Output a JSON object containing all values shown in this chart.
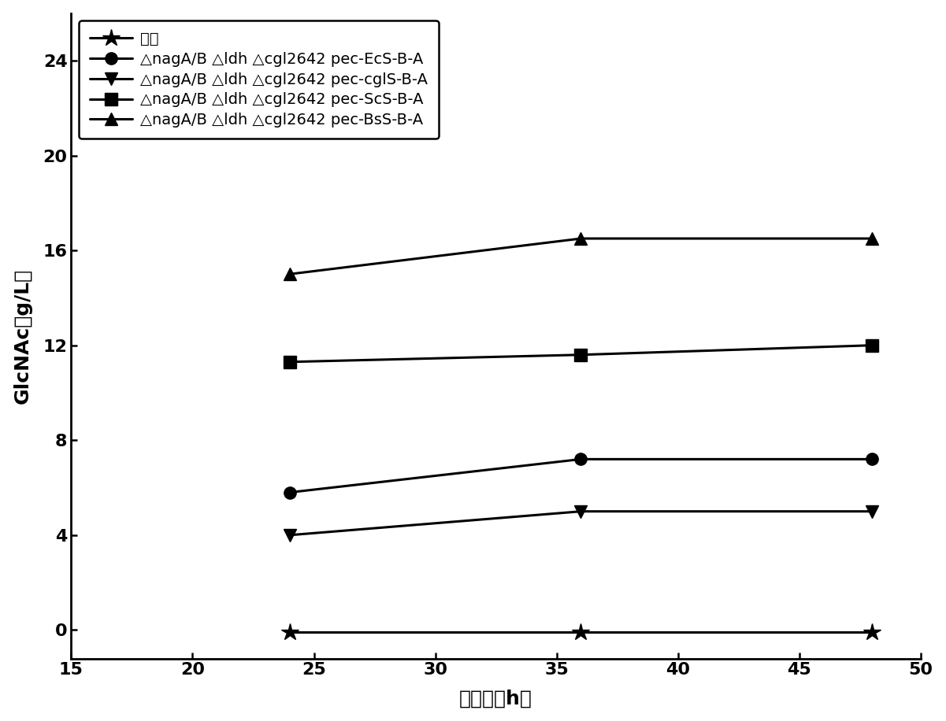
{
  "x_data": [
    24,
    36,
    48
  ],
  "series": [
    {
      "label": "对照",
      "values": [
        -0.1,
        -0.1,
        -0.1
      ],
      "marker": "*",
      "markersize": 16
    },
    {
      "label": "△nagA/B △ldh △cgl2642 pec-EcS-B-A",
      "values": [
        5.8,
        7.2,
        7.2
      ],
      "marker": "o",
      "markersize": 11
    },
    {
      "label": "△nagA/B △ldh △cgl2642 pec-cglS-B-A",
      "values": [
        4.0,
        5.0,
        5.0
      ],
      "marker": "v",
      "markersize": 11
    },
    {
      "label": "△nagA/B △ldh △cgl2642 pec-ScS-B-A",
      "values": [
        11.3,
        11.6,
        12.0
      ],
      "marker": "s",
      "markersize": 11
    },
    {
      "label": "△nagA/B △ldh △cgl2642 pec-BsS-B-A",
      "values": [
        15.0,
        16.5,
        16.5
      ],
      "marker": "^",
      "markersize": 11
    }
  ],
  "xlabel": "时间　（h）",
  "ylabel": "GlcNAc（g/L）",
  "xlim": [
    15,
    50
  ],
  "ylim": [
    -1.2,
    26
  ],
  "xticks": [
    15,
    20,
    25,
    30,
    35,
    40,
    45,
    50
  ],
  "yticks": [
    0,
    4,
    8,
    12,
    16,
    20,
    24
  ],
  "color": "#000000",
  "linewidth": 2.2,
  "legend_fontsize": 14,
  "axis_fontsize": 18,
  "tick_fontsize": 16,
  "title": ""
}
